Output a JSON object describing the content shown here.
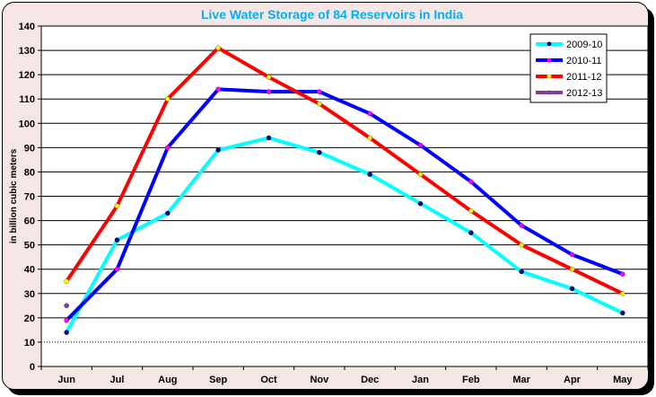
{
  "chart_data": {
    "type": "line",
    "title": "Live Water Storage of 84 Reservoirs in India",
    "xlabel": "",
    "ylabel": "in billion cubic meters",
    "categories": [
      "Jun",
      "Jul",
      "Aug",
      "Sep",
      "Oct",
      "Nov",
      "Dec",
      "Jan",
      "Feb",
      "Mar",
      "Apr",
      "May"
    ],
    "ylim": [
      0,
      140
    ],
    "yticks": [
      "0",
      "10",
      "20",
      "30",
      "40",
      "50",
      "60",
      "70",
      "80",
      "90",
      "100",
      "110",
      "120",
      "130",
      "140"
    ],
    "grid": true,
    "legend_position": "top-right",
    "series": [
      {
        "name": "2009-10",
        "color": "#00ffff",
        "marker_color": "#000080",
        "values": [
          14,
          52,
          63,
          89,
          94,
          88,
          79,
          67,
          55,
          39,
          32,
          22
        ]
      },
      {
        "name": "2010-11",
        "color": "#0000ff",
        "marker_color": "#ff00ff",
        "values": [
          19,
          40,
          90,
          114,
          113,
          113,
          104,
          91,
          76,
          58,
          46,
          38
        ]
      },
      {
        "name": "2011-12",
        "color": "#ff0000",
        "marker_color": "#ffff00",
        "values": [
          35,
          66,
          110,
          131,
          119,
          108,
          94,
          79,
          64,
          50,
          40,
          30
        ]
      },
      {
        "name": "2012-13",
        "color": "#7f3f98",
        "marker_color": "#7f3f98",
        "values": [
          25,
          null,
          null,
          null,
          null,
          null,
          null,
          null,
          null,
          null,
          null,
          null
        ]
      }
    ]
  }
}
